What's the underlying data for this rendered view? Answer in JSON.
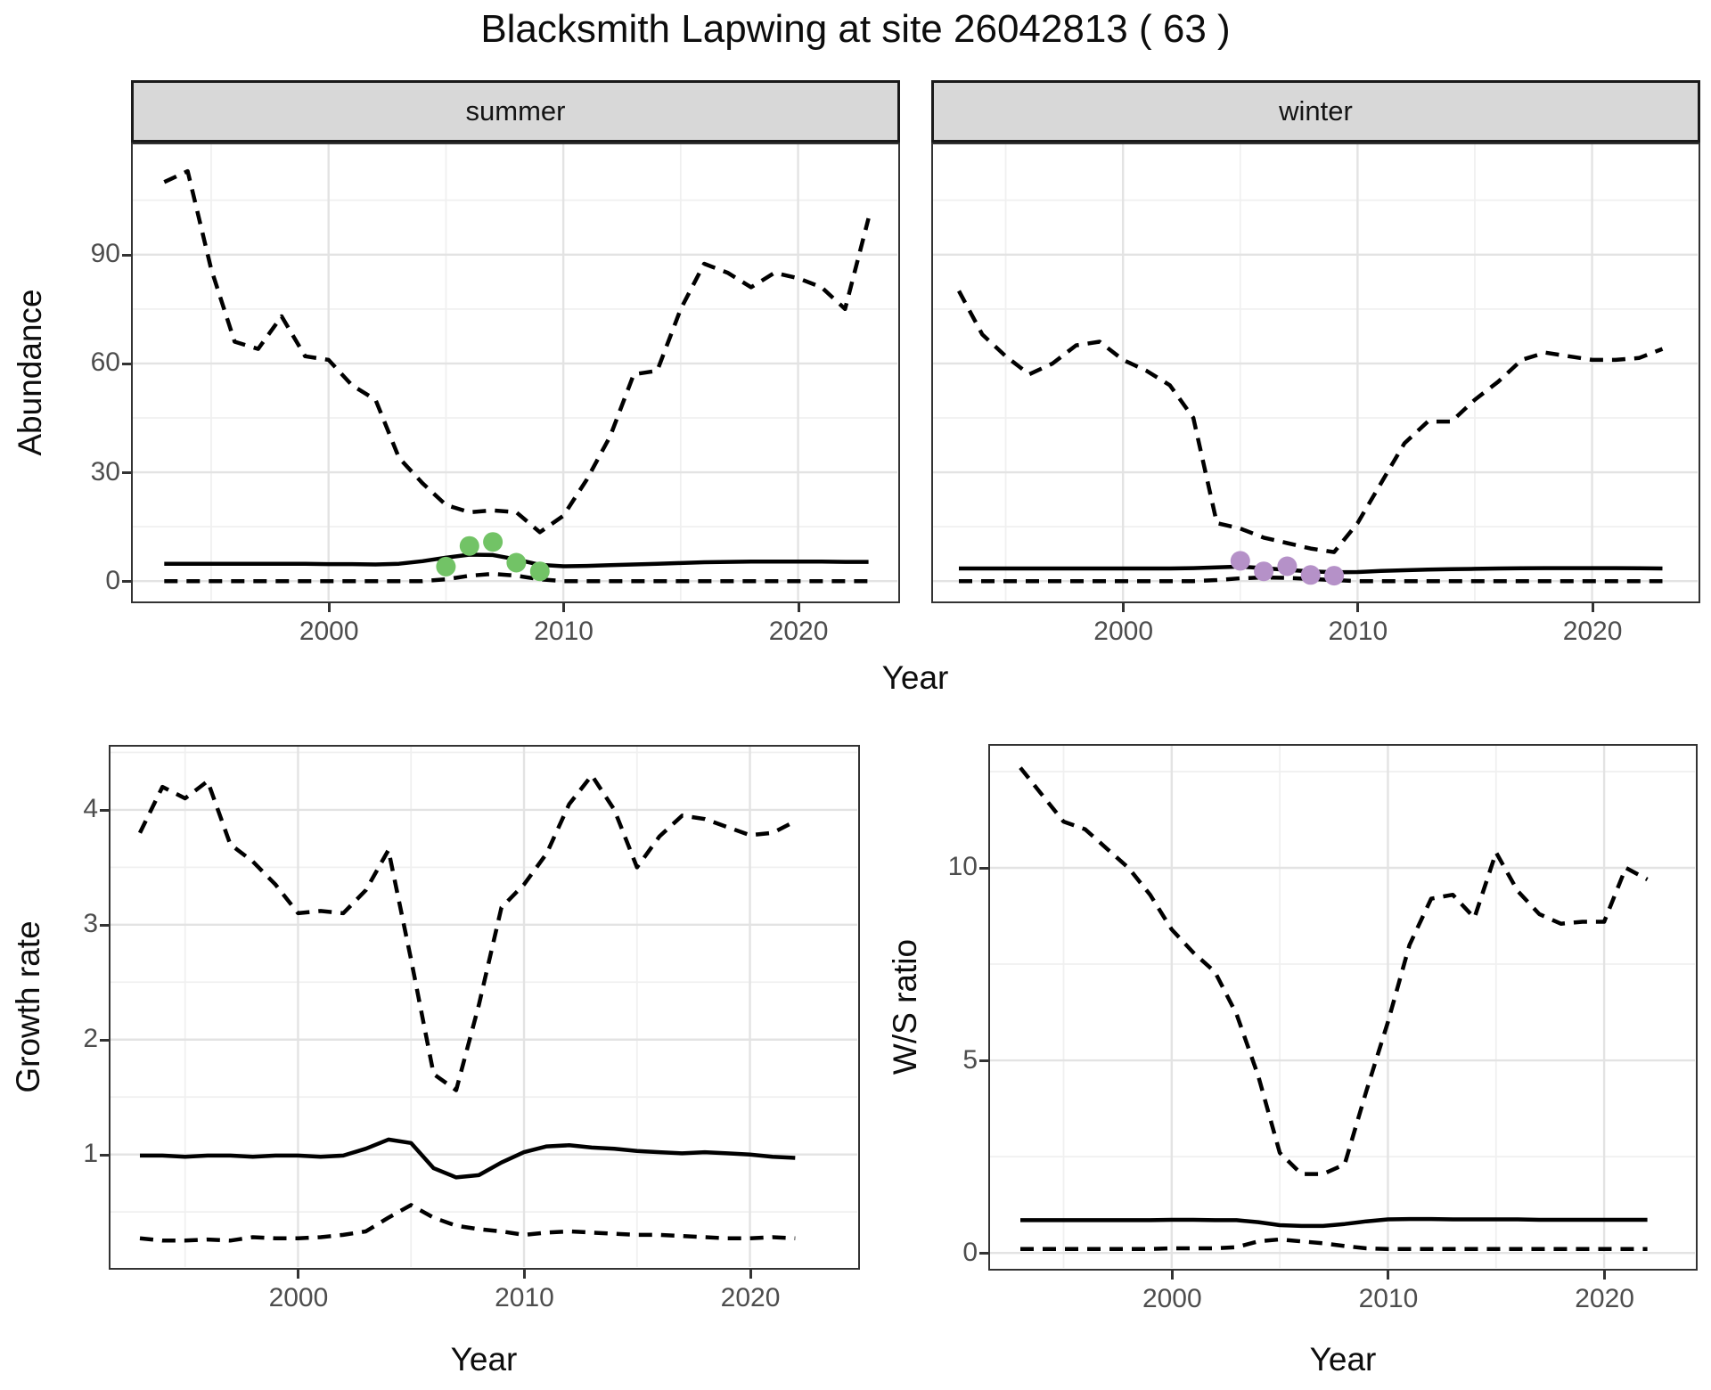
{
  "title": "Blacksmith Lapwing at site 26042813 ( 63 )",
  "axis_titles": {
    "x": "Year",
    "abundance": "Abundance",
    "growth": "Growth rate",
    "ws_ratio": "W/S ratio"
  },
  "facets": [
    {
      "label": "summer"
    },
    {
      "label": "winter"
    }
  ],
  "colors": {
    "line": "#000000",
    "summer_points": "#72C366",
    "winter_points": "#B591C8",
    "grid_major": "#E3E3E3",
    "grid_minor": "#F0F0F0",
    "strip_bg": "#D8D8D8",
    "panel_border": "#333333",
    "tick_text": "#4D4D4D"
  },
  "chart_data": [
    {
      "type": "line",
      "facet": "summer",
      "xlabel": "Year",
      "ylabel": "Abundance",
      "x": [
        1993,
        1994,
        1995,
        1996,
        1997,
        1998,
        1999,
        2000,
        2001,
        2002,
        2003,
        2004,
        2005,
        2006,
        2007,
        2008,
        2009,
        2010,
        2011,
        2012,
        2013,
        2014,
        2015,
        2016,
        2017,
        2018,
        2019,
        2020,
        2021,
        2022,
        2023
      ],
      "series": [
        {
          "name": "upper_95ci",
          "style": "dashed",
          "values": [
            110,
            113,
            86,
            66,
            64,
            73,
            62,
            61,
            54,
            50,
            34,
            27,
            21,
            19,
            19.5,
            19,
            13.5,
            18,
            28,
            40,
            57,
            58,
            75,
            87.5,
            85,
            81,
            85,
            83.5,
            81,
            75,
            100
          ]
        },
        {
          "name": "median",
          "style": "solid",
          "values": [
            4.8,
            4.8,
            4.8,
            4.8,
            4.8,
            4.8,
            4.8,
            4.7,
            4.7,
            4.6,
            4.8,
            5.5,
            6.5,
            7.3,
            7.2,
            6.0,
            4.5,
            4.1,
            4.2,
            4.4,
            4.6,
            4.8,
            5.0,
            5.2,
            5.3,
            5.4,
            5.4,
            5.4,
            5.4,
            5.3,
            5.3
          ]
        },
        {
          "name": "lower_95ci",
          "style": "dashed",
          "values": [
            0,
            0,
            0,
            0,
            0,
            0,
            0,
            0,
            0,
            0,
            0,
            0,
            0.5,
            1.5,
            2,
            1.5,
            0.5,
            0,
            0,
            0,
            0,
            0,
            0,
            0,
            0,
            0,
            0,
            0,
            0,
            0,
            0
          ]
        }
      ],
      "points": {
        "name": "observed_counts",
        "color": "#72C366",
        "x": [
          2005,
          2006,
          2007,
          2008,
          2009
        ],
        "y": [
          4,
          9.7,
          10.8,
          5.1,
          2.7
        ]
      },
      "xlim": [
        1991.66,
        2024.23
      ],
      "ylim": [
        -5.35,
        120.4
      ],
      "xticks": [
        2000,
        2010,
        2020
      ],
      "xminor": [
        1995,
        2005,
        2015
      ],
      "yticks": [
        0,
        30,
        60,
        90
      ],
      "yminor": [
        15,
        45,
        75,
        105
      ],
      "show_ylabels": true
    },
    {
      "type": "line",
      "facet": "winter",
      "xlabel": "Year",
      "ylabel": "Abundance",
      "x": [
        1993,
        1994,
        1995,
        1996,
        1997,
        1998,
        1999,
        2000,
        2001,
        2002,
        2003,
        2004,
        2005,
        2006,
        2007,
        2008,
        2009,
        2010,
        2011,
        2012,
        2013,
        2014,
        2015,
        2016,
        2017,
        2018,
        2019,
        2020,
        2021,
        2022,
        2023
      ],
      "series": [
        {
          "name": "upper_95ci",
          "style": "dashed",
          "values": [
            80,
            68,
            62,
            57,
            60,
            65,
            66,
            61,
            58,
            54,
            45,
            16,
            14.5,
            12,
            10.5,
            9,
            8,
            16,
            27,
            38,
            44,
            44,
            50,
            55,
            61,
            63,
            62,
            61,
            61,
            61.5,
            64
          ]
        },
        {
          "name": "median",
          "style": "solid",
          "values": [
            3.5,
            3.5,
            3.5,
            3.5,
            3.5,
            3.5,
            3.5,
            3.5,
            3.5,
            3.5,
            3.6,
            3.8,
            4.0,
            3.6,
            3.1,
            2.7,
            2.45,
            2.5,
            2.8,
            3.0,
            3.2,
            3.3,
            3.4,
            3.5,
            3.55,
            3.6,
            3.6,
            3.6,
            3.6,
            3.55,
            3.5
          ]
        },
        {
          "name": "lower_95ci",
          "style": "dashed",
          "values": [
            0,
            0,
            0,
            0,
            0,
            0,
            0,
            0,
            0,
            0,
            0,
            0.3,
            0.8,
            1,
            0.9,
            0.6,
            0.3,
            0,
            0,
            0,
            0,
            0,
            0,
            0,
            0,
            0,
            0,
            0,
            0,
            0,
            0
          ]
        }
      ],
      "points": {
        "name": "observed_counts",
        "color": "#B591C8",
        "x": [
          2005,
          2006,
          2007,
          2008,
          2009
        ],
        "y": [
          5.6,
          2.7,
          4.1,
          1.7,
          1.5
        ]
      },
      "xlim": [
        1991.9,
        2024.5
      ],
      "ylim": [
        -5.35,
        120.4
      ],
      "xticks": [
        2000,
        2010,
        2020
      ],
      "xminor": [
        1995,
        2005,
        2015
      ],
      "yticks": [
        0,
        30,
        60,
        90
      ],
      "yminor": [
        15,
        45,
        75,
        105
      ],
      "show_ylabels": false
    },
    {
      "type": "line",
      "facet": null,
      "xlabel": "Year",
      "ylabel": "Growth rate",
      "x": [
        1993,
        1994,
        1995,
        1996,
        1997,
        1998,
        1999,
        2000,
        2001,
        2002,
        2003,
        2004,
        2005,
        2006,
        2007,
        2008,
        2009,
        2010,
        2011,
        2012,
        2013,
        2014,
        2015,
        2016,
        2017,
        2018,
        2019,
        2020,
        2021,
        2022
      ],
      "series": [
        {
          "name": "upper_95ci",
          "style": "dashed",
          "values": [
            3.8,
            4.2,
            4.1,
            4.25,
            3.7,
            3.55,
            3.35,
            3.1,
            3.12,
            3.1,
            3.3,
            3.65,
            2.7,
            1.7,
            1.56,
            2.3,
            3.15,
            3.35,
            3.62,
            4.05,
            4.3,
            4.0,
            3.5,
            3.77,
            3.95,
            3.92,
            3.85,
            3.78,
            3.8,
            3.9
          ]
        },
        {
          "name": "median",
          "style": "solid",
          "values": [
            0.99,
            0.99,
            0.98,
            0.99,
            0.99,
            0.98,
            0.99,
            0.99,
            0.98,
            0.99,
            1.05,
            1.13,
            1.1,
            0.88,
            0.8,
            0.82,
            0.93,
            1.02,
            1.07,
            1.08,
            1.06,
            1.05,
            1.03,
            1.02,
            1.01,
            1.02,
            1.01,
            1.0,
            0.98,
            0.97
          ]
        },
        {
          "name": "lower_95ci",
          "style": "dashed",
          "values": [
            0.27,
            0.25,
            0.25,
            0.26,
            0.25,
            0.28,
            0.27,
            0.27,
            0.28,
            0.3,
            0.33,
            0.45,
            0.56,
            0.45,
            0.38,
            0.35,
            0.33,
            0.3,
            0.32,
            0.33,
            0.32,
            0.31,
            0.3,
            0.3,
            0.29,
            0.28,
            0.27,
            0.27,
            0.28,
            0.27
          ]
        }
      ],
      "points": null,
      "xlim": [
        1991.7,
        2024.75
      ],
      "ylim": [
        0.02,
        4.55
      ],
      "xticks": [
        2000,
        2010,
        2020
      ],
      "xminor": [
        1995,
        2005,
        2015
      ],
      "yticks": [
        1,
        2,
        3,
        4
      ],
      "yminor": [
        0.5,
        1.5,
        2.5,
        3.5,
        4.5
      ],
      "show_ylabels": true
    },
    {
      "type": "line",
      "facet": null,
      "xlabel": "Year",
      "ylabel": "W/S ratio",
      "x": [
        1993,
        1994,
        1995,
        1996,
        1997,
        1998,
        1999,
        2000,
        2001,
        2002,
        2003,
        2004,
        2005,
        2006,
        2007,
        2008,
        2009,
        2010,
        2011,
        2012,
        2013,
        2014,
        2015,
        2016,
        2017,
        2018,
        2019,
        2020,
        2021,
        2022
      ],
      "series": [
        {
          "name": "upper_95ci",
          "style": "dashed",
          "values": [
            12.6,
            11.9,
            11.2,
            11.0,
            10.5,
            10.0,
            9.3,
            8.4,
            7.8,
            7.3,
            6.2,
            4.6,
            2.6,
            2.05,
            2.05,
            2.3,
            4.2,
            6.0,
            8.0,
            9.2,
            9.3,
            8.7,
            10.4,
            9.4,
            8.8,
            8.55,
            8.6,
            8.6,
            10.0,
            9.7
          ]
        },
        {
          "name": "median",
          "style": "solid",
          "values": [
            0.85,
            0.85,
            0.85,
            0.85,
            0.85,
            0.85,
            0.85,
            0.86,
            0.86,
            0.85,
            0.85,
            0.8,
            0.72,
            0.7,
            0.7,
            0.75,
            0.82,
            0.87,
            0.88,
            0.88,
            0.87,
            0.87,
            0.87,
            0.87,
            0.86,
            0.86,
            0.86,
            0.86,
            0.86,
            0.86
          ]
        },
        {
          "name": "lower_95ci",
          "style": "dashed",
          "values": [
            0.1,
            0.1,
            0.1,
            0.1,
            0.1,
            0.1,
            0.1,
            0.12,
            0.12,
            0.12,
            0.15,
            0.3,
            0.35,
            0.3,
            0.25,
            0.18,
            0.12,
            0.1,
            0.1,
            0.1,
            0.1,
            0.1,
            0.1,
            0.1,
            0.1,
            0.1,
            0.1,
            0.1,
            0.1,
            0.1
          ]
        }
      ],
      "points": null,
      "xlim": [
        1991.6,
        2024.2
      ],
      "ylim": [
        -0.39,
        13.17
      ],
      "xticks": [
        2000,
        2010,
        2020
      ],
      "xminor": [
        1995,
        2005,
        2015
      ],
      "yticks": [
        0,
        5,
        10
      ],
      "yminor": [
        2.5,
        7.5,
        12.5
      ],
      "show_ylabels": true
    }
  ]
}
